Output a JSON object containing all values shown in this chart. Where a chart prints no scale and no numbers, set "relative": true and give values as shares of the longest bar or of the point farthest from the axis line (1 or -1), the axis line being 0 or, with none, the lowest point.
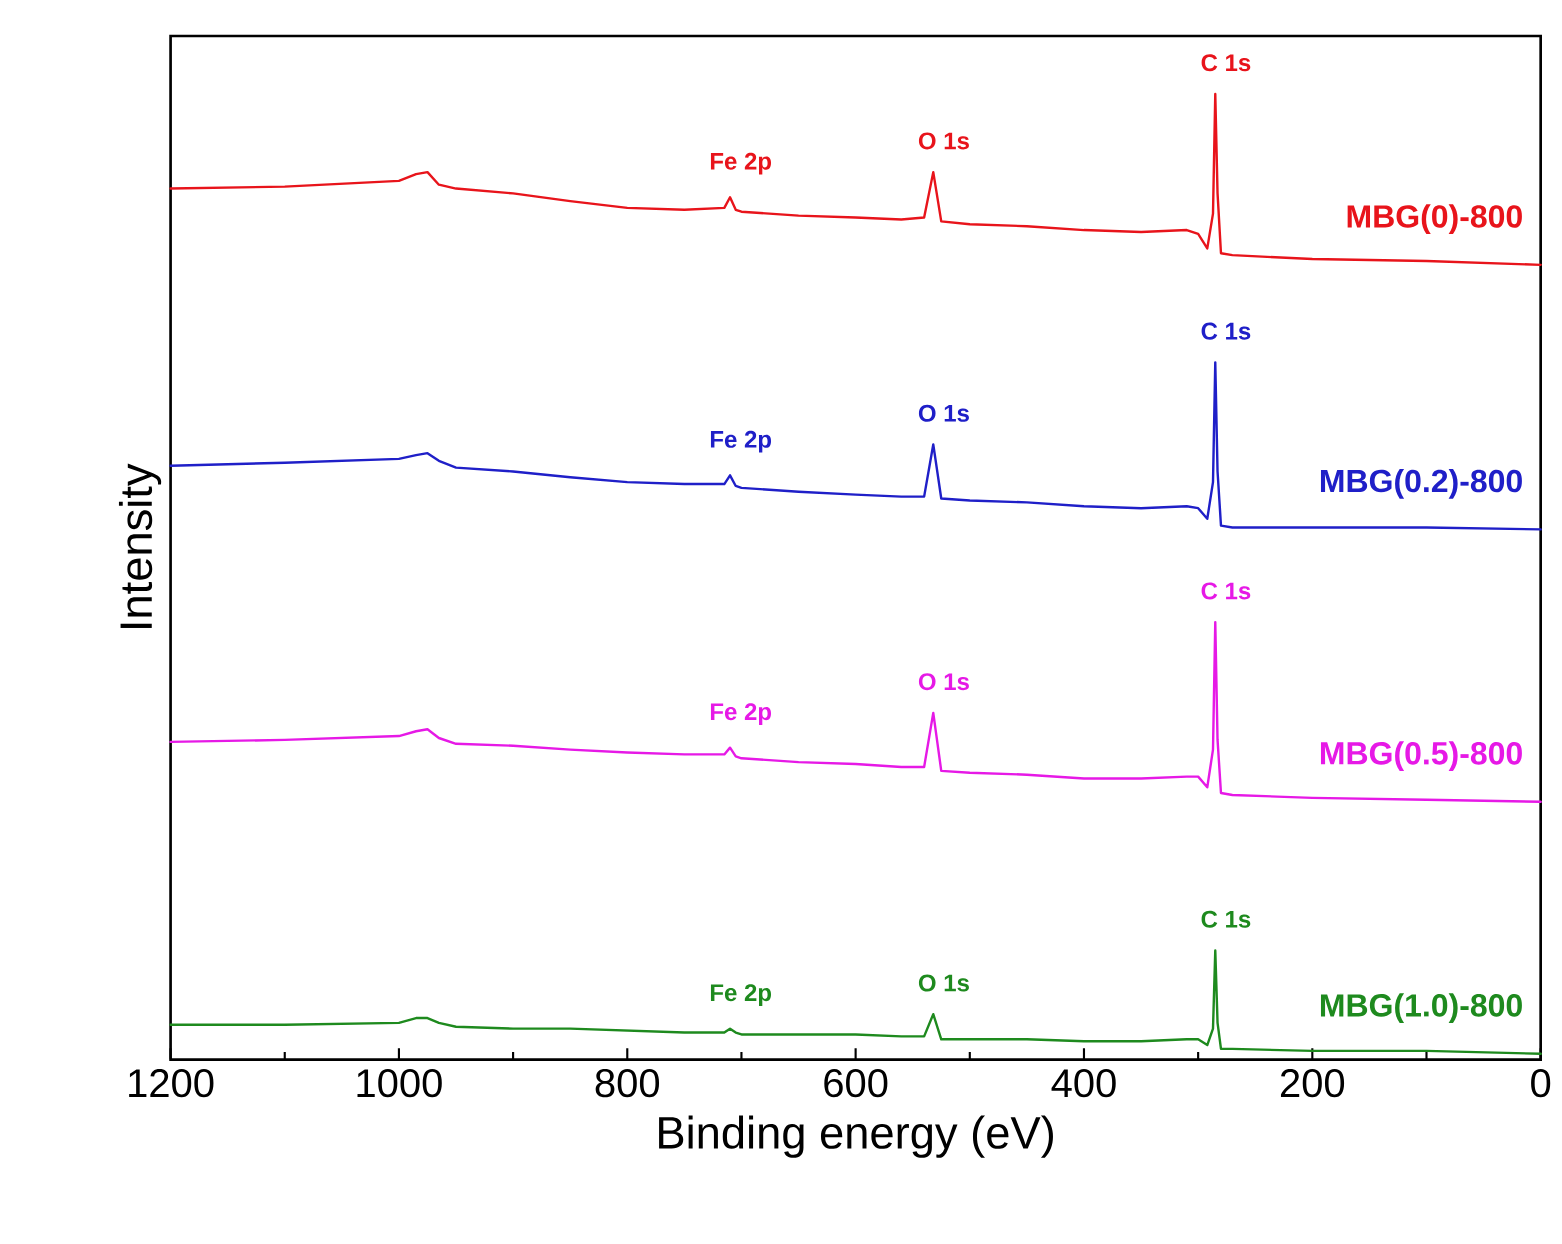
{
  "chart_data": {
    "type": "line",
    "relative": true,
    "xlabel": "Binding energy (eV)",
    "ylabel": "Intensity",
    "xlim": [
      1200,
      0
    ],
    "xticks": [
      1200,
      1000,
      800,
      600,
      400,
      200,
      0
    ],
    "x": [
      1200,
      1100,
      1000,
      985,
      975,
      965,
      950,
      900,
      850,
      800,
      750,
      715,
      710,
      705,
      700,
      650,
      600,
      560,
      540,
      532,
      525,
      500,
      450,
      400,
      350,
      310,
      300,
      292,
      287,
      285,
      283,
      280,
      270,
      200,
      100,
      0
    ],
    "series": [
      {
        "name": "MBG(0)-800",
        "color": "#e8141b",
        "values": [
          0.902,
          0.904,
          0.91,
          0.917,
          0.919,
          0.906,
          0.902,
          0.897,
          0.889,
          0.882,
          0.88,
          0.882,
          0.893,
          0.88,
          0.878,
          0.874,
          0.872,
          0.87,
          0.872,
          0.919,
          0.868,
          0.865,
          0.863,
          0.859,
          0.857,
          0.859,
          0.855,
          0.84,
          0.876,
          1.0,
          0.897,
          0.835,
          0.833,
          0.829,
          0.827,
          0.823
        ]
      },
      {
        "name": "MBG(0.2)-800",
        "color": "#1f1fc8",
        "values": [
          0.615,
          0.618,
          0.622,
          0.626,
          0.628,
          0.62,
          0.613,
          0.609,
          0.603,
          0.598,
          0.596,
          0.596,
          0.605,
          0.594,
          0.592,
          0.588,
          0.585,
          0.583,
          0.583,
          0.637,
          0.581,
          0.579,
          0.577,
          0.573,
          0.571,
          0.573,
          0.571,
          0.56,
          0.598,
          0.722,
          0.609,
          0.553,
          0.551,
          0.551,
          0.551,
          0.549
        ]
      },
      {
        "name": "MBG(0.5)-800",
        "color": "#e619e6",
        "values": [
          0.329,
          0.331,
          0.335,
          0.34,
          0.342,
          0.333,
          0.327,
          0.325,
          0.321,
          0.318,
          0.316,
          0.316,
          0.323,
          0.314,
          0.312,
          0.308,
          0.306,
          0.303,
          0.303,
          0.359,
          0.299,
          0.297,
          0.295,
          0.291,
          0.291,
          0.293,
          0.293,
          0.282,
          0.321,
          0.453,
          0.331,
          0.276,
          0.274,
          0.271,
          0.269,
          0.267
        ]
      },
      {
        "name": "MBG(1.0)-800",
        "color": "#1e8a1e",
        "values": [
          0.036,
          0.036,
          0.038,
          0.043,
          0.043,
          0.038,
          0.034,
          0.032,
          0.032,
          0.03,
          0.028,
          0.028,
          0.032,
          0.028,
          0.026,
          0.026,
          0.026,
          0.024,
          0.024,
          0.047,
          0.021,
          0.021,
          0.021,
          0.019,
          0.019,
          0.021,
          0.021,
          0.015,
          0.032,
          0.113,
          0.038,
          0.011,
          0.011,
          0.009,
          0.009,
          0.006
        ]
      }
    ],
    "annotations": [
      {
        "text": "C 1s",
        "x": 285,
        "y": 1.0
      },
      {
        "text": "O 1s",
        "x": 532,
        "y": 0.919
      },
      {
        "text": "Fe 2p",
        "x": 710,
        "y": 0.893
      },
      {
        "text": "C 1s",
        "x": 285,
        "y": 0.722
      },
      {
        "text": "O 1s",
        "x": 532,
        "y": 0.637
      },
      {
        "text": "Fe 2p",
        "x": 710,
        "y": 0.605
      },
      {
        "text": "C 1s",
        "x": 285,
        "y": 0.453
      },
      {
        "text": "O 1s",
        "x": 532,
        "y": 0.359
      },
      {
        "text": "Fe 2p",
        "x": 710,
        "y": 0.323
      },
      {
        "text": "C 1s",
        "x": 285,
        "y": 0.113
      },
      {
        "text": "O 1s",
        "x": 532,
        "y": 0.047
      },
      {
        "text": "Fe 2p",
        "x": 710,
        "y": 0.032
      }
    ]
  }
}
